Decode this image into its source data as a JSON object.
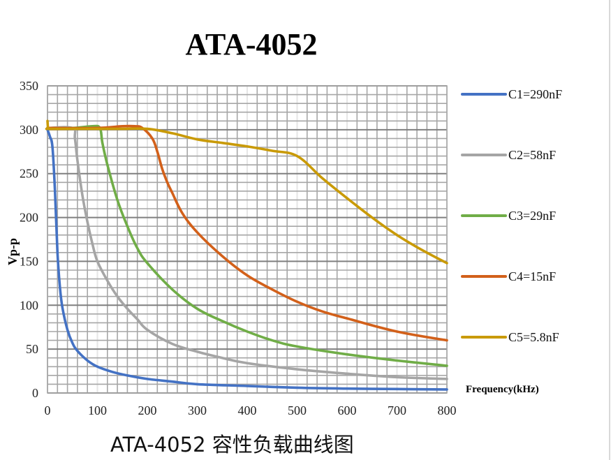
{
  "title": "ATA-4052",
  "caption": "ATA-4052 容性负载曲线图",
  "chart_data": {
    "type": "line",
    "title": "ATA-4052",
    "subtitle": "ATA-4052 容性负载曲线图",
    "xlabel": "Frequency(kHz)",
    "ylabel": "Vp-p",
    "xlim": [
      0,
      800
    ],
    "ylim": [
      0,
      350
    ],
    "xticks": [
      0,
      100,
      200,
      300,
      400,
      500,
      600,
      700,
      800
    ],
    "yticks": [
      0,
      50,
      100,
      150,
      200,
      250,
      300,
      350
    ],
    "grid": true,
    "legend_position": "right",
    "series": [
      {
        "name": "C1=290nF",
        "color": "#4472C4",
        "x": [
          0,
          5,
          10,
          15,
          20,
          25,
          30,
          40,
          50,
          60,
          80,
          100,
          130,
          160,
          200,
          250,
          300,
          400,
          500,
          600,
          700,
          800
        ],
        "values": [
          300,
          292,
          280,
          230,
          160,
          120,
          97,
          72,
          57,
          48,
          37,
          30,
          24,
          20,
          16,
          13,
          10,
          8,
          6,
          5,
          4.5,
          4
        ]
      },
      {
        "name": "C2=58nF",
        "color": "#A5A5A5",
        "x": [
          0,
          50,
          55,
          60,
          70,
          80,
          90,
          100,
          120,
          140,
          160,
          180,
          200,
          250,
          300,
          350,
          400,
          500,
          600,
          700,
          800
        ],
        "values": [
          302,
          302,
          290,
          265,
          225,
          195,
          170,
          150,
          128,
          110,
          96,
          84,
          72,
          56,
          47,
          40,
          34,
          27,
          22,
          18,
          16
        ]
      },
      {
        "name": "C3=29nF",
        "color": "#70AD47",
        "x": [
          0,
          50,
          90,
          105,
          110,
          120,
          140,
          160,
          180,
          200,
          250,
          300,
          350,
          400,
          450,
          500,
          600,
          700,
          800
        ],
        "values": [
          302,
          302,
          304,
          302,
          285,
          260,
          220,
          190,
          165,
          148,
          118,
          96,
          82,
          70,
          60,
          53,
          44,
          37,
          31
        ]
      },
      {
        "name": "C4=15nF",
        "color": "#D2601A",
        "x": [
          0,
          100,
          150,
          175,
          190,
          210,
          220,
          230,
          240,
          250,
          270,
          300,
          350,
          400,
          450,
          500,
          550,
          600,
          700,
          800
        ],
        "values": [
          302,
          302,
          304,
          304,
          302,
          290,
          275,
          255,
          240,
          228,
          205,
          183,
          156,
          134,
          118,
          104,
          93,
          85,
          70,
          60
        ]
      },
      {
        "name": "C5=5.8nF",
        "color": "#C99A06",
        "x": [
          0,
          1,
          2,
          50,
          100,
          150,
          200,
          250,
          300,
          350,
          400,
          450,
          500,
          550,
          600,
          650,
          700,
          750,
          800
        ],
        "values": [
          310,
          302,
          301,
          301,
          301,
          301,
          301,
          296,
          289,
          285,
          281,
          276,
          270,
          245,
          222,
          200,
          180,
          163,
          148
        ]
      }
    ]
  },
  "legend": [
    {
      "label": "C1=290nF",
      "color": "#4472C4"
    },
    {
      "label": "C2=58nF",
      "color": "#A5A5A5"
    },
    {
      "label": "C3=29nF",
      "color": "#70AD47"
    },
    {
      "label": "C4=15nF",
      "color": "#D2601A"
    },
    {
      "label": "C5=5.8nF",
      "color": "#C99A06"
    }
  ],
  "axes": {
    "xlabel": "Frequency(kHz)",
    "ylabel": "Vp-p",
    "xticks": [
      "0",
      "100",
      "200",
      "300",
      "400",
      "500",
      "600",
      "700",
      "800"
    ],
    "yticks": [
      "0",
      "50",
      "100",
      "150",
      "200",
      "250",
      "300",
      "350"
    ]
  }
}
